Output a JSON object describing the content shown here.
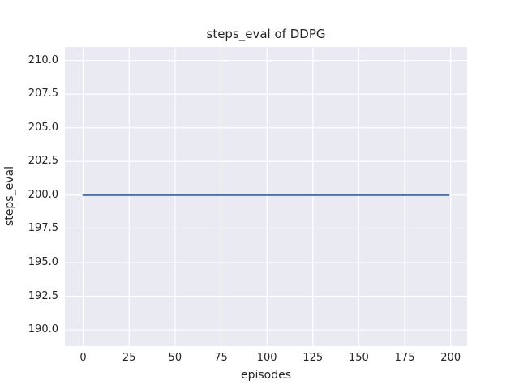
{
  "chart_data": {
    "type": "line",
    "title": "steps_eval of DDPG",
    "xlabel": "episodes",
    "ylabel": "steps_eval",
    "xlim": [
      -9.95,
      208.95
    ],
    "ylim": [
      188.8,
      211.0
    ],
    "xtick_values": [
      0,
      25,
      50,
      75,
      100,
      125,
      150,
      175,
      200
    ],
    "xtick_labels": [
      "0",
      "25",
      "50",
      "75",
      "100",
      "125",
      "150",
      "175",
      "200"
    ],
    "ytick_values": [
      190.0,
      192.5,
      195.0,
      197.5,
      200.0,
      202.5,
      205.0,
      207.5,
      210.0
    ],
    "ytick_labels": [
      "190.0",
      "192.5",
      "195.0",
      "197.5",
      "200.0",
      "202.5",
      "205.0",
      "207.5",
      "210.0"
    ],
    "grid": true,
    "legend": "none",
    "plot_background_color": "#eaeaf2",
    "gridline_color": "#ffffff",
    "text_color": "#262626",
    "series": [
      {
        "name": "steps_eval",
        "color": "#4c72b0",
        "x": [
          0,
          199
        ],
        "values": [
          200,
          200
        ],
        "note": "constant line at 200 from episode 0 to 199"
      }
    ]
  }
}
